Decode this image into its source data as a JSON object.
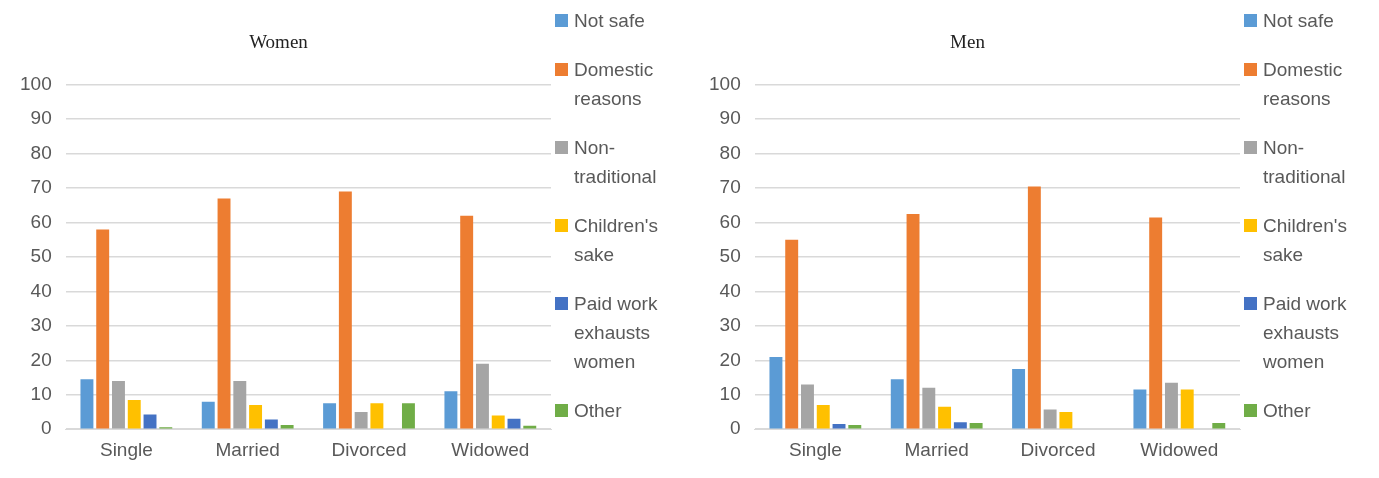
{
  "chart_data": [
    {
      "type": "bar",
      "title": "Women",
      "categories": [
        "Single",
        "Married",
        "Divorced",
        "Widowed"
      ],
      "series": [
        {
          "name": "Not safe",
          "color": "#5b9bd5",
          "values": [
            14.5,
            8,
            7.5,
            11
          ]
        },
        {
          "name": "Domestic reasons",
          "color": "#ed7d31",
          "values": [
            58,
            67,
            69,
            62
          ]
        },
        {
          "name": "Non-traditional",
          "color": "#a5a5a5",
          "values": [
            14,
            14,
            5,
            19
          ]
        },
        {
          "name": "Children's sake",
          "color": "#ffc000",
          "values": [
            8.5,
            7,
            7.5,
            4
          ]
        },
        {
          "name": "Paid work exhausts women",
          "color": "#4472c4",
          "values": [
            4.3,
            2.8,
            0,
            3
          ]
        },
        {
          "name": "Other",
          "color": "#70ad47",
          "values": [
            0.6,
            1.2,
            7.5,
            1
          ]
        }
      ],
      "ylim": [
        0,
        100
      ],
      "yticks": [
        0,
        10,
        20,
        30,
        40,
        50,
        60,
        70,
        80,
        90,
        100
      ],
      "grid": "y",
      "legend": "right"
    },
    {
      "type": "bar",
      "title": "Men",
      "categories": [
        "Single",
        "Married",
        "Divorced",
        "Widowed"
      ],
      "series": [
        {
          "name": "Not safe",
          "color": "#5b9bd5",
          "values": [
            21,
            14.5,
            17.5,
            11.5
          ]
        },
        {
          "name": "Domestic reasons",
          "color": "#ed7d31",
          "values": [
            55,
            62.5,
            70.5,
            61.5
          ]
        },
        {
          "name": "Non-traditional",
          "color": "#a5a5a5",
          "values": [
            13,
            12,
            5.7,
            13.5
          ]
        },
        {
          "name": "Children's sake",
          "color": "#ffc000",
          "values": [
            7,
            6.5,
            5,
            11.5
          ]
        },
        {
          "name": "Paid work exhausts women",
          "color": "#4472c4",
          "values": [
            1.5,
            2,
            0,
            0
          ]
        },
        {
          "name": "Other",
          "color": "#70ad47",
          "values": [
            1.2,
            1.8,
            0,
            1.8
          ]
        }
      ],
      "ylim": [
        0,
        100
      ],
      "yticks": [
        0,
        10,
        20,
        30,
        40,
        50,
        60,
        70,
        80,
        90,
        100
      ],
      "grid": "y",
      "legend": "right"
    }
  ]
}
